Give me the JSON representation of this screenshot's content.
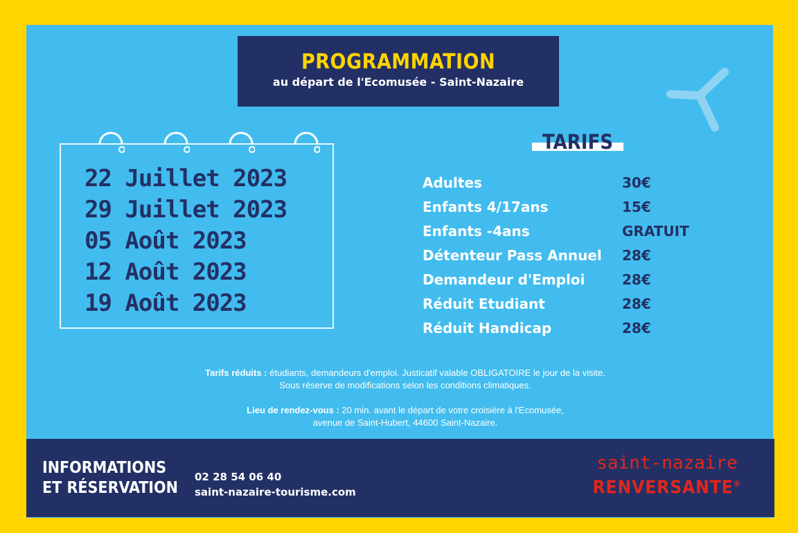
{
  "header": {
    "title": "PROGRAMMATION",
    "subtitle": "au départ de l'Ecomusée - Saint-Nazaire"
  },
  "dates": [
    "22 Juillet 2023",
    "29 Juillet 2023",
    "05 Août 2023",
    "12 Août 2023",
    "19 Août 2023"
  ],
  "tarifs": {
    "heading": "TARIFS",
    "rows": [
      {
        "label": "Adultes",
        "price": "30€"
      },
      {
        "label": "Enfants 4/17ans",
        "price": "15€"
      },
      {
        "label": "Enfants -4ans",
        "price": "GRATUIT"
      },
      {
        "label": "Détenteur Pass Annuel",
        "price": "28€"
      },
      {
        "label": "Demandeur d'Emploi",
        "price": "28€"
      },
      {
        "label": "Réduit Etudiant",
        "price": "28€"
      },
      {
        "label": "Réduit Handicap",
        "price": "28€"
      }
    ]
  },
  "notes": {
    "reduced_label": "Tarifs réduits :",
    "reduced_text": " étudiants, demandeurs d'emploi. Justicatif valable OBLIGATOIRE le jour de la visite.",
    "weather_text": "Sous réserve de modifications selon les conditions climatiques.",
    "meeting_label": "Lieu de rendez-vous :",
    "meeting_text": " 20 min. avant le départ de votre croisière à l'Ecomusée,",
    "meeting_address": "avenue de Saint-Hubert, 44600 Saint-Nazaire."
  },
  "footer": {
    "info_line1": "INFORMATIONS",
    "info_line2": "ET RÉSERVATION",
    "phone": "02 28 54 06 40",
    "website": "saint-nazaire-tourisme.com",
    "logo_line1": "saint-nazaire",
    "logo_line2": "RENVERSANTE",
    "logo_mark": "®"
  },
  "colors": {
    "frame": "#FFD400",
    "panel": "#42BCEE",
    "navy": "#233065",
    "title_yellow": "#FFD400",
    "logo_red": "#E1261C"
  }
}
